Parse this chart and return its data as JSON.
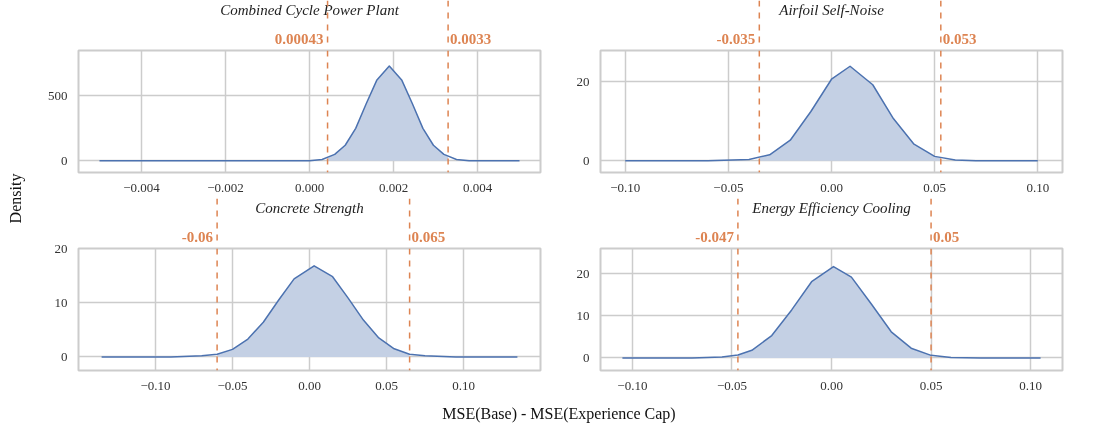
{
  "chart_data": [
    {
      "type": "line",
      "title": "Combined Cycle Power Plant",
      "ylabel": "Density",
      "xlim": [
        -0.0055,
        0.0055
      ],
      "ylim": [
        -90,
        850
      ],
      "xticks": [
        {
          "value": -0.004,
          "label": "−0.004"
        },
        {
          "value": -0.002,
          "label": "−0.002"
        },
        {
          "value": 0,
          "label": "0.000"
        },
        {
          "value": 0.002,
          "label": "0.002"
        },
        {
          "value": 0.004,
          "label": "0.004"
        }
      ],
      "yticks": [
        0,
        500
      ],
      "grid": true,
      "series": [
        {
          "color": "#4c72b0",
          "x": [
            -0.005,
            -0.002,
            0,
            0.0003,
            0.0006,
            0.00085,
            0.0011,
            0.00135,
            0.0016,
            0.0019,
            0.0022,
            0.00245,
            0.0027,
            0.00295,
            0.0032,
            0.0035,
            0.0038,
            0.0042,
            0.005
          ],
          "values": [
            0,
            0,
            0,
            10,
            50,
            120,
            250,
            440,
            620,
            730,
            620,
            440,
            250,
            120,
            50,
            10,
            0,
            0,
            0
          ]
        },
        {
          "type": "area",
          "color": "#c4d0e4",
          "x": [
            0.00043,
            0.0006,
            0.00085,
            0.0011,
            0.00135,
            0.0016,
            0.0019,
            0.0022,
            0.00245,
            0.0027,
            0.00295,
            0.0032,
            0.0033
          ],
          "values": [
            20,
            50,
            120,
            250,
            440,
            620,
            730,
            620,
            440,
            250,
            120,
            50,
            30
          ]
        }
      ],
      "ref_lines": [
        {
          "axis": "x",
          "value": 0.00043,
          "label": "0.00043",
          "color": "#dd8452",
          "line_style": "dashed"
        },
        {
          "axis": "x",
          "value": 0.0033,
          "label": "0.0033",
          "color": "#dd8452",
          "line_style": "dashed"
        }
      ]
    },
    {
      "type": "line",
      "title": "Airfoil Self-Noise",
      "xlim": [
        -0.112,
        0.112
      ],
      "ylim": [
        -3,
        28
      ],
      "xticks": [
        {
          "value": -0.1,
          "label": "−0.10"
        },
        {
          "value": -0.05,
          "label": "−0.05"
        },
        {
          "value": 0,
          "label": "0.00"
        },
        {
          "value": 0.05,
          "label": "0.05"
        },
        {
          "value": 0.1,
          "label": "0.10"
        }
      ],
      "yticks": [
        0,
        20
      ],
      "grid": true,
      "series": [
        {
          "color": "#4c72b0",
          "x": [
            -0.1,
            -0.06,
            -0.04,
            -0.03,
            -0.02,
            -0.01,
            0,
            0.009,
            0.02,
            0.03,
            0.04,
            0.05,
            0.06,
            0.07,
            0.1
          ],
          "values": [
            0,
            0,
            0.3,
            1.5,
            5.2,
            12.5,
            20.7,
            24,
            19.3,
            10.7,
            4.2,
            1.1,
            0.2,
            0,
            0
          ]
        },
        {
          "type": "area",
          "color": "#c4d0e4",
          "x": [
            -0.035,
            -0.03,
            -0.02,
            -0.01,
            0,
            0.009,
            0.02,
            0.03,
            0.04,
            0.05,
            0.053
          ],
          "values": [
            0.7,
            1.5,
            5.2,
            12.5,
            20.7,
            24,
            19.3,
            10.7,
            4.2,
            1.1,
            0.7
          ]
        }
      ],
      "ref_lines": [
        {
          "axis": "x",
          "value": -0.035,
          "label": "-0.035",
          "color": "#dd8452",
          "line_style": "dashed"
        },
        {
          "axis": "x",
          "value": 0.053,
          "label": "0.053",
          "color": "#dd8452",
          "line_style": "dashed"
        }
      ]
    },
    {
      "type": "line",
      "title": "Concrete Strength",
      "xlabel": "MSE(Base) - MSE(Experience Cap)",
      "xlim": [
        -0.15,
        0.15
      ],
      "ylim": [
        -2.5,
        20
      ],
      "xticks": [
        {
          "value": -0.1,
          "label": "−0.10"
        },
        {
          "value": -0.05,
          "label": "−0.05"
        },
        {
          "value": 0,
          "label": "0.00"
        },
        {
          "value": 0.05,
          "label": "0.05"
        },
        {
          "value": 0.1,
          "label": "0.10"
        }
      ],
      "yticks": [
        0,
        10,
        20
      ],
      "grid": true,
      "series": [
        {
          "color": "#4c72b0",
          "x": [
            -0.135,
            -0.09,
            -0.07,
            -0.06,
            -0.05,
            -0.04,
            -0.03,
            -0.02,
            -0.01,
            0.003,
            0.015,
            0.025,
            0.035,
            0.045,
            0.055,
            0.065,
            0.075,
            0.095,
            0.135
          ],
          "values": [
            0,
            0,
            0.2,
            0.5,
            1.4,
            3.3,
            6.4,
            10.5,
            14.4,
            16.8,
            14.8,
            10.9,
            6.8,
            3.5,
            1.5,
            0.5,
            0.2,
            0,
            0
          ]
        },
        {
          "type": "area",
          "color": "#c4d0e4",
          "x": [
            -0.06,
            -0.05,
            -0.04,
            -0.03,
            -0.02,
            -0.01,
            0.003,
            0.015,
            0.025,
            0.035,
            0.045,
            0.055,
            0.065
          ],
          "values": [
            0.5,
            1.4,
            3.3,
            6.4,
            10.5,
            14.4,
            16.8,
            14.8,
            10.9,
            6.8,
            3.5,
            1.5,
            0.5
          ]
        }
      ],
      "ref_lines": [
        {
          "axis": "x",
          "value": -0.06,
          "label": "-0.06",
          "color": "#dd8452",
          "line_style": "dashed"
        },
        {
          "axis": "x",
          "value": 0.065,
          "label": "0.065",
          "color": "#dd8452",
          "line_style": "dashed"
        }
      ]
    },
    {
      "type": "line",
      "title": "Energy Efficiency Cooling",
      "xlim": [
        -0.116,
        0.116
      ],
      "ylim": [
        -3,
        26
      ],
      "xticks": [
        {
          "value": -0.1,
          "label": "−0.10"
        },
        {
          "value": -0.05,
          "label": "−0.05"
        },
        {
          "value": 0,
          "label": "0.00"
        },
        {
          "value": 0.05,
          "label": "0.05"
        },
        {
          "value": 0.1,
          "label": "0.10"
        }
      ],
      "yticks": [
        0,
        10,
        20
      ],
      "grid": true,
      "series": [
        {
          "color": "#4c72b0",
          "x": [
            -0.105,
            -0.07,
            -0.055,
            -0.047,
            -0.04,
            -0.03,
            -0.02,
            -0.01,
            0.001,
            0.01,
            0.02,
            0.03,
            0.04,
            0.05,
            0.06,
            0.075,
            0.105
          ],
          "values": [
            0,
            0,
            0.2,
            0.7,
            1.8,
            5.3,
            11.4,
            18.1,
            21.7,
            19.2,
            12.8,
            6.2,
            2.3,
            0.6,
            0.1,
            0,
            0
          ]
        },
        {
          "type": "area",
          "color": "#c4d0e4",
          "x": [
            -0.047,
            -0.04,
            -0.03,
            -0.02,
            -0.01,
            0.001,
            0.01,
            0.02,
            0.03,
            0.04,
            0.05
          ],
          "values": [
            0.7,
            1.8,
            5.3,
            11.4,
            18.1,
            21.7,
            19.2,
            12.8,
            6.2,
            2.3,
            0.6
          ]
        }
      ],
      "ref_lines": [
        {
          "axis": "x",
          "value": -0.047,
          "label": "-0.047",
          "color": "#dd8452",
          "line_style": "dashed"
        },
        {
          "axis": "x",
          "value": 0.05,
          "label": "0.05",
          "color": "#dd8452",
          "line_style": "dashed"
        }
      ]
    }
  ]
}
